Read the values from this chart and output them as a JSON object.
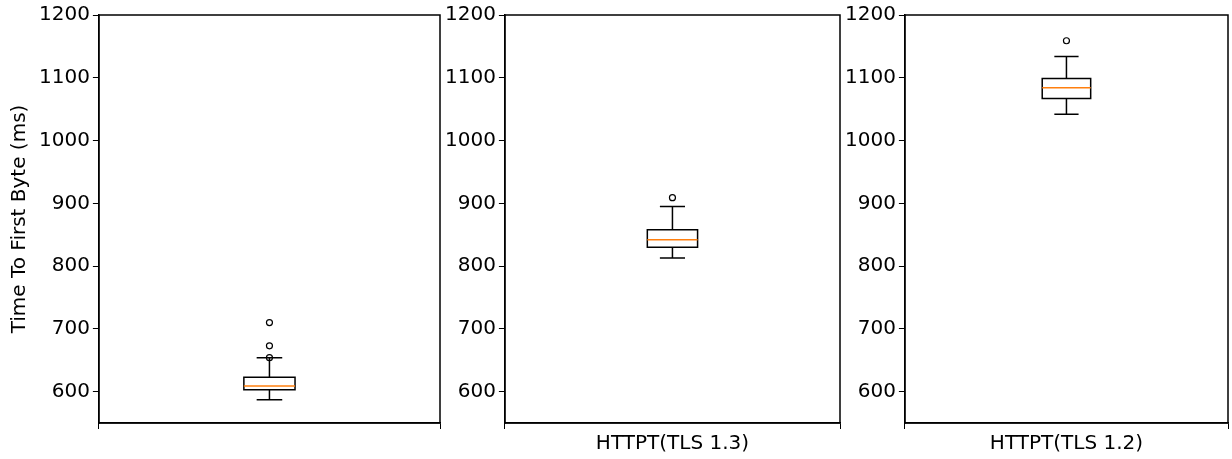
{
  "chart_data": [
    {
      "type": "box",
      "ylabel": "Time To First Byte (ms)",
      "categories": [
        null
      ],
      "ylim": [
        550,
        1200
      ],
      "yticks": [
        600,
        700,
        800,
        900,
        1000,
        1100,
        1200
      ],
      "grid": false,
      "series": [
        {
          "color": "#000000",
          "boxes": [
            {
              "low": 587,
              "q1": 603,
              "median": 609,
              "q3": 623,
              "high": 654,
              "outliers": [
                654,
                673,
                710
              ]
            }
          ]
        }
      ]
    },
    {
      "type": "box",
      "categories": [
        "HTTPT(TLS 1.3)"
      ],
      "ylim": [
        550,
        1200
      ],
      "yticks": [
        600,
        700,
        800,
        900,
        1000,
        1100,
        1200
      ],
      "grid": false,
      "series": [
        {
          "color": "#000000",
          "boxes": [
            {
              "low": 813,
              "q1": 830,
              "median": 842,
              "q3": 858,
              "high": 895,
              "outliers": [
                909
              ]
            }
          ]
        }
      ]
    },
    {
      "type": "box",
      "categories": [
        "HTTPT(TLS 1.2)"
      ],
      "ylim": [
        550,
        1200
      ],
      "yticks": [
        600,
        700,
        800,
        900,
        1000,
        1100,
        1200
      ],
      "grid": false,
      "series": [
        {
          "color": "#000000",
          "boxes": [
            {
              "low": 1042,
              "q1": 1067,
              "median": 1084,
              "q3": 1099,
              "high": 1134,
              "outliers": [
                1159
              ]
            }
          ]
        }
      ]
    }
  ]
}
